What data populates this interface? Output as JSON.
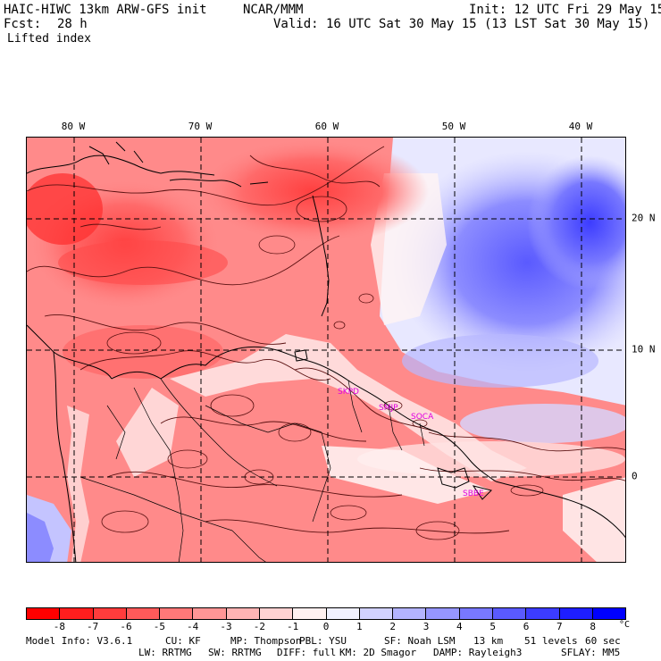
{
  "header": {
    "model": "HAIC-HIWC 13km ARW-GFS init",
    "org": "NCAR/MMM",
    "init": "Init: 12 UTC Fri 29 May 15",
    "fcst_label": "Fcst:",
    "fcst_value": "28 h",
    "valid": "Valid: 16 UTC Sat 30 May 15 (13 LST Sat 30 May 15)",
    "field": "Lifted index"
  },
  "map": {
    "lon_labels": [
      "80 W",
      "70 W",
      "60 W",
      "50 W",
      "40 W"
    ],
    "lat_labels": [
      "20 N",
      "10 N",
      "0"
    ],
    "stations": [
      "SKPD",
      "SMJP",
      "SOCA",
      "SBBE"
    ]
  },
  "colorbar": {
    "colors": [
      "#ff0000",
      "#ff1e1e",
      "#ff3c3c",
      "#ff5a5a",
      "#ff7878",
      "#ff9696",
      "#ffb4b4",
      "#ffd2d2",
      "#fff0f0",
      "#f0f0ff",
      "#d2d2ff",
      "#b4b4ff",
      "#9696ff",
      "#7878ff",
      "#5a5aff",
      "#3c3cff",
      "#1e1eff",
      "#0000ff"
    ],
    "ticks": [
      "-8",
      "-7",
      "-6",
      "-5",
      "-4",
      "-3",
      "-2",
      "-1",
      "0",
      "1",
      "2",
      "3",
      "4",
      "5",
      "6",
      "7",
      "8"
    ],
    "unit": "°C"
  },
  "footer": {
    "line1": [
      "Model Info: V3.6.1",
      "CU: KF",
      "MP: Thompson",
      "PBL: YSU",
      "SF: Noah LSM",
      "13 km",
      "51 levels",
      "60 sec"
    ],
    "line2": [
      "LW: RRTMG",
      "SW: RRTMG",
      "DIFF: full",
      "KM: 2D Smagor",
      "DAMP: Rayleigh3",
      "SFLAY: MM5"
    ]
  }
}
